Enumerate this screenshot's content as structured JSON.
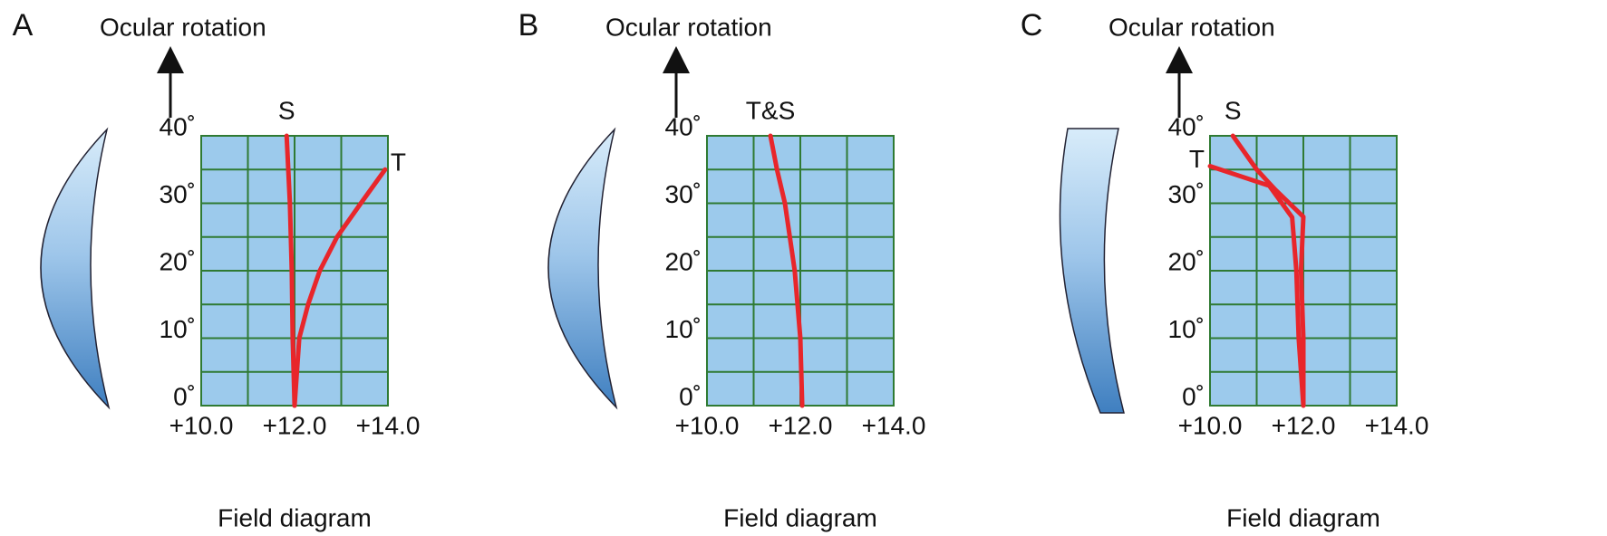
{
  "chart_data": [
    {
      "type": "line",
      "panel_label": "A",
      "title": "Ocular rotation",
      "xlabel": "Field diagram",
      "xlim": [
        10,
        14
      ],
      "ylim": [
        0,
        40
      ],
      "xticks": [
        {
          "value": 10,
          "label": "+10.0"
        },
        {
          "value": 12,
          "label": "+12.0"
        },
        {
          "value": 14,
          "label": "+14.0"
        }
      ],
      "yticks": [
        {
          "value": 0,
          "label": "0˚"
        },
        {
          "value": 10,
          "label": "10˚"
        },
        {
          "value": 20,
          "label": "20˚"
        },
        {
          "value": 30,
          "label": "30˚"
        },
        {
          "value": 40,
          "label": "40˚"
        }
      ],
      "grid": true,
      "series": [
        {
          "name": "S",
          "color": "#e8262b",
          "x": [
            12.0,
            11.96,
            11.94,
            11.9,
            11.83
          ],
          "values": [
            0,
            10,
            20,
            30,
            40
          ]
        },
        {
          "name": "T",
          "color": "#e8262b",
          "x": [
            12.0,
            12.1,
            12.29,
            12.54,
            12.91,
            13.42,
            13.94
          ],
          "values": [
            0,
            10,
            15,
            20,
            25,
            30,
            35
          ]
        }
      ]
    },
    {
      "type": "line",
      "panel_label": "B",
      "title": "Ocular rotation",
      "xlabel": "Field diagram",
      "xlim": [
        10,
        14
      ],
      "ylim": [
        0,
        40
      ],
      "xticks": [
        {
          "value": 10,
          "label": "+10.0"
        },
        {
          "value": 12,
          "label": "+12.0"
        },
        {
          "value": 14,
          "label": "+14.0"
        }
      ],
      "yticks": [
        {
          "value": 0,
          "label": "0˚"
        },
        {
          "value": 10,
          "label": "10˚"
        },
        {
          "value": 20,
          "label": "20˚"
        },
        {
          "value": 30,
          "label": "30˚"
        },
        {
          "value": 40,
          "label": "40˚"
        }
      ],
      "grid": true,
      "series": [
        {
          "name": "T&S",
          "color": "#e8262b",
          "x": [
            12.04,
            12.0,
            11.88,
            11.67,
            11.5,
            11.36
          ],
          "values": [
            0,
            10,
            20,
            30,
            35,
            40
          ]
        }
      ]
    },
    {
      "type": "line",
      "panel_label": "C",
      "title": "Ocular rotation",
      "xlabel": "Field diagram",
      "xlim": [
        10,
        14
      ],
      "ylim": [
        0,
        40
      ],
      "xticks": [
        {
          "value": 10,
          "label": "+10.0"
        },
        {
          "value": 12,
          "label": "+12.0"
        },
        {
          "value": 14,
          "label": "+14.0"
        }
      ],
      "yticks": [
        {
          "value": 0,
          "label": "0˚"
        },
        {
          "value": 10,
          "label": "10˚"
        },
        {
          "value": 20,
          "label": "20˚"
        },
        {
          "value": 30,
          "label": "30˚"
        },
        {
          "value": 40,
          "label": "40˚"
        }
      ],
      "grid": true,
      "series": [
        {
          "name": "S",
          "color": "#e8262b",
          "x": [
            12.0,
            12.0,
            11.95,
            12.0,
            11.4,
            11.0,
            10.49
          ],
          "values": [
            0,
            10,
            20,
            28,
            32,
            35,
            40
          ]
        },
        {
          "name": "T",
          "color": "#e8262b",
          "x": [
            12.0,
            11.9,
            11.85,
            11.76,
            11.27,
            10.0
          ],
          "values": [
            0,
            10,
            20,
            27.9,
            32.6,
            35.5
          ]
        }
      ]
    }
  ]
}
